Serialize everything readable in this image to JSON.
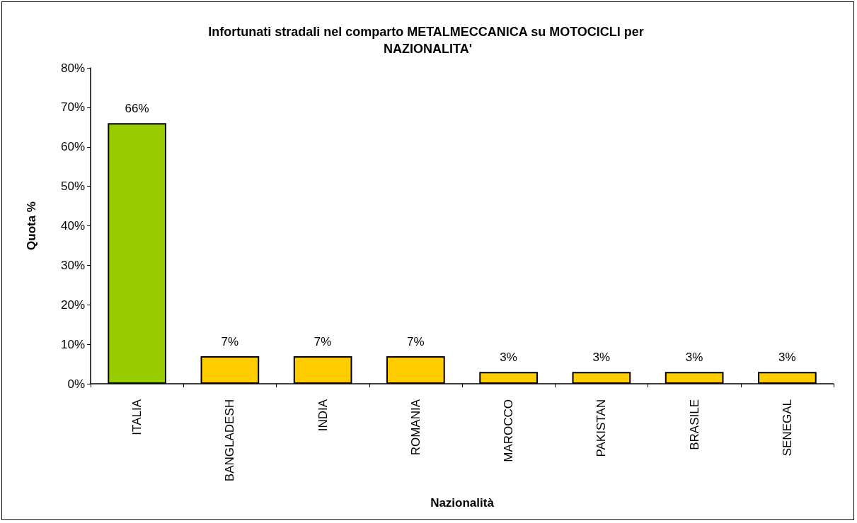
{
  "chart_data": {
    "type": "bar",
    "title": "Infortunati stradali nel comparto METALMECCANICA su MOTOCICLI per NAZIONALITA'",
    "xlabel": "Nazionalità",
    "ylabel": "Quota %",
    "categories": [
      "ITALIA",
      "BANGLADESH",
      "INDIA",
      "ROMANIA",
      "MAROCCO",
      "PAKISTAN",
      "BRASILE",
      "SENEGAL"
    ],
    "values": [
      66,
      7,
      7,
      7,
      3,
      3,
      3,
      3
    ],
    "colors": [
      "#99cc00",
      "#ffcc00",
      "#ffcc00",
      "#ffcc00",
      "#ffcc00",
      "#ffcc00",
      "#ffcc00",
      "#ffcc00"
    ],
    "value_labels": [
      "66%",
      "7%",
      "7%",
      "7%",
      "3%",
      "3%",
      "3%",
      "3%"
    ],
    "ylim": [
      0,
      80
    ],
    "yticks": [
      {
        "value": 0,
        "label": "0%"
      },
      {
        "value": 10,
        "label": "10%"
      },
      {
        "value": 20,
        "label": "20%"
      },
      {
        "value": 30,
        "label": "30%"
      },
      {
        "value": 40,
        "label": "40%"
      },
      {
        "value": 50,
        "label": "50%"
      },
      {
        "value": 60,
        "label": "60%"
      },
      {
        "value": 70,
        "label": "70%"
      },
      {
        "value": 80,
        "label": "80%"
      }
    ],
    "grid": false
  }
}
